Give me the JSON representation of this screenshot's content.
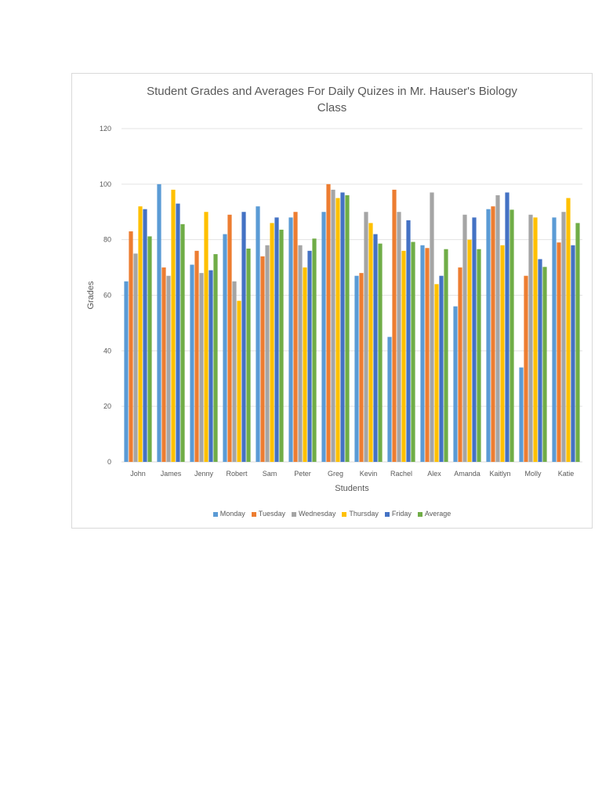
{
  "chart_data": {
    "type": "bar",
    "title": "Student Grades and Averages For Daily Quizes in Mr. Hauser's Biology Class",
    "title_lines": [
      "Student Grades and Averages For Daily Quizes in Mr. Hauser's Biology",
      "Class"
    ],
    "xlabel": "Students",
    "ylabel": "Grades",
    "ylim": [
      0,
      120
    ],
    "yticks": [
      0,
      20,
      40,
      60,
      80,
      100,
      120
    ],
    "grid": true,
    "legend_position": "bottom",
    "categories": [
      "John",
      "James",
      "Jenny",
      "Robert",
      "Sam",
      "Peter",
      "Greg",
      "Kevin",
      "Rachel",
      "Alex",
      "Amanda",
      "Kaitlyn",
      "Molly",
      "Katie"
    ],
    "series": [
      {
        "name": "Monday",
        "color": "#5b9bd5",
        "values": [
          65,
          100,
          71,
          82,
          92,
          88,
          90,
          67,
          45,
          78,
          56,
          91,
          34,
          88
        ]
      },
      {
        "name": "Tuesday",
        "color": "#ed7d31",
        "values": [
          83,
          70,
          76,
          89,
          74,
          90,
          100,
          68,
          98,
          77,
          70,
          92,
          67,
          79
        ]
      },
      {
        "name": "Wednesday",
        "color": "#a5a5a5",
        "values": [
          75,
          67,
          68,
          65,
          78,
          78,
          98,
          90,
          90,
          97,
          89,
          96,
          89,
          90
        ]
      },
      {
        "name": "Thursday",
        "color": "#ffc000",
        "values": [
          92,
          98,
          90,
          58,
          86,
          70,
          95,
          86,
          76,
          64,
          80,
          78,
          88,
          95
        ]
      },
      {
        "name": "Friday",
        "color": "#4472c4",
        "values": [
          91,
          93,
          69,
          90,
          88,
          76,
          97,
          82,
          87,
          67,
          88,
          97,
          73,
          78
        ]
      },
      {
        "name": "Average",
        "color": "#70ad47",
        "values": [
          81.2,
          85.6,
          74.8,
          76.8,
          83.6,
          80.4,
          96,
          78.6,
          79.2,
          76.6,
          76.6,
          90.8,
          70.2,
          86
        ]
      }
    ]
  }
}
